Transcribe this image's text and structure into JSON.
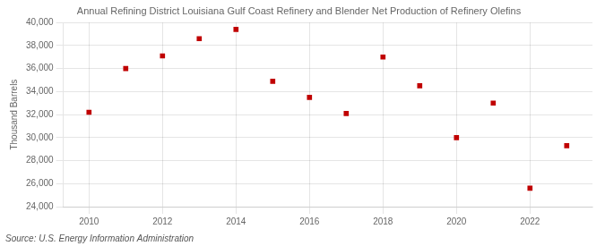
{
  "chart_data": {
    "type": "scatter",
    "title": "Annual Refining District Louisiana Gulf Coast Refinery and Blender Net Production of Refinery Olefins",
    "ylabel": "Thousand Barrels",
    "annotations": [
      "Source: U.S. Energy Information Administration"
    ],
    "x": [
      2010,
      2011,
      2012,
      2013,
      2014,
      2015,
      2016,
      2017,
      2018,
      2019,
      2020,
      2021,
      2022,
      2023
    ],
    "values": [
      32200,
      36000,
      37100,
      38600,
      39400,
      34900,
      33500,
      32100,
      37000,
      34500,
      30000,
      33000,
      25600,
      29300
    ],
    "color": "#c00000",
    "marker": "square",
    "xlim": [
      2009.3,
      2023.7
    ],
    "xticks": [
      2010,
      2012,
      2014,
      2016,
      2018,
      2020,
      2022
    ],
    "ylim": [
      24000,
      40000
    ],
    "yticks": [
      {
        "value": 24000,
        "label": "24,000"
      },
      {
        "value": 26000,
        "label": "26,000"
      },
      {
        "value": 28000,
        "label": "28,000"
      },
      {
        "value": 30000,
        "label": "30,000"
      },
      {
        "value": 32000,
        "label": "32,000"
      },
      {
        "value": 34000,
        "label": "34,000"
      },
      {
        "value": 36000,
        "label": "36,000"
      },
      {
        "value": 38000,
        "label": "38,000"
      },
      {
        "value": 40000,
        "label": "40,000"
      }
    ],
    "grid": true
  }
}
